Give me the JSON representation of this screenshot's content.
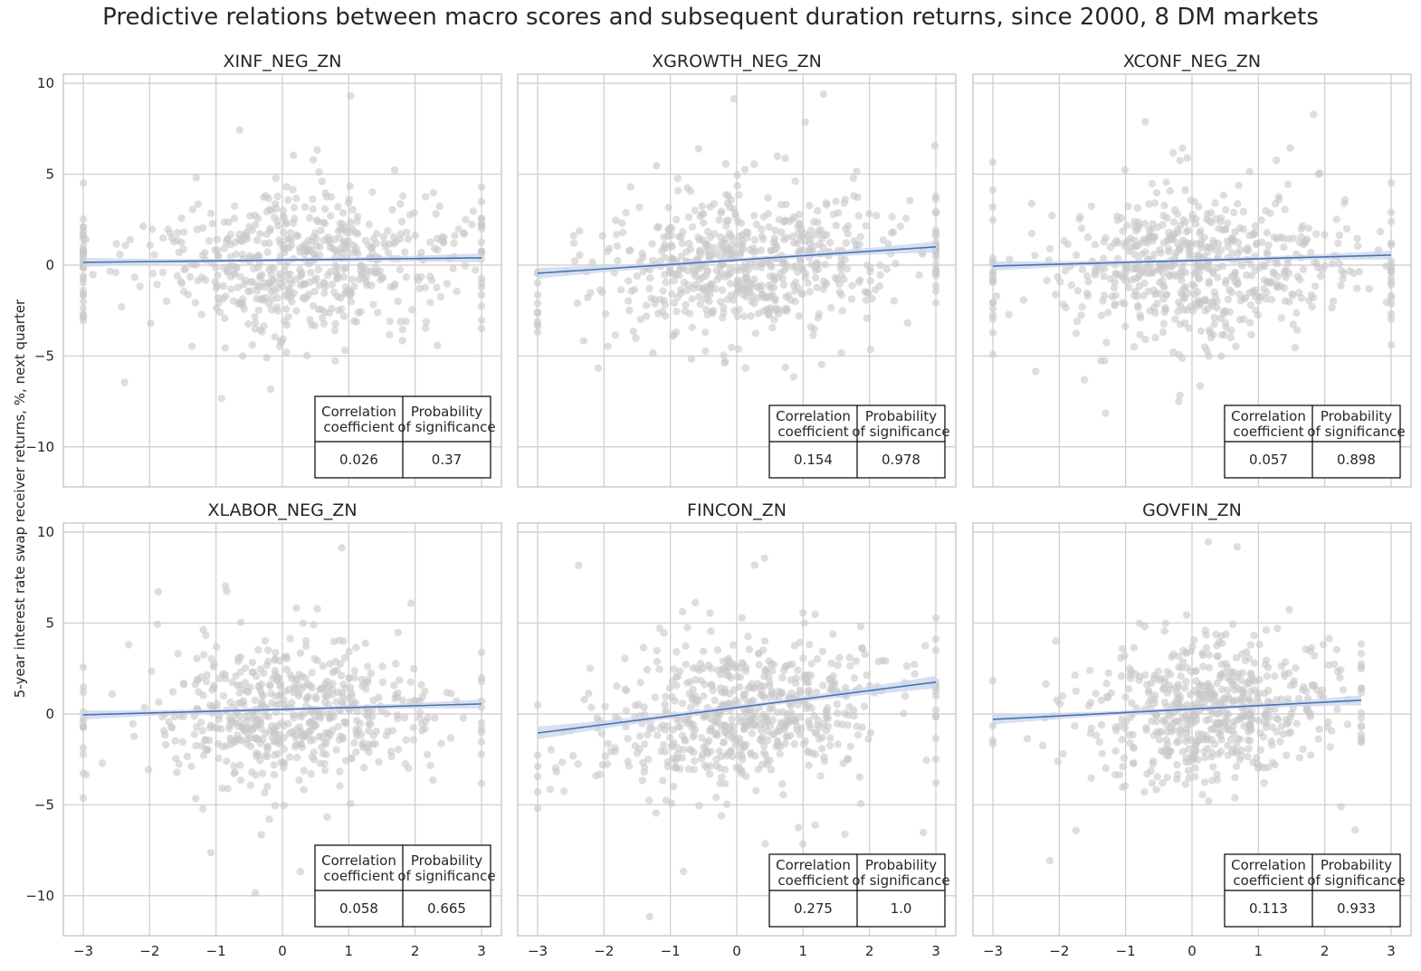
{
  "figure": {
    "title": "Predictive relations between macro scores and subsequent duration returns, since 2000, 8 DM markets",
    "ylabel": "5-year interest rate swap receiver returns, %, next quarter"
  },
  "colors": {
    "scatter": "#c8c8c8",
    "line": "#4c72b0",
    "band": "#c9d5ec",
    "grid": "#cfcfcf",
    "frame": "#cccccc",
    "table_border": "#000000"
  },
  "table_headers": [
    "Correlation\ncoefficient",
    "Probability\nof significance"
  ],
  "chart_data": [
    {
      "type": "scatter",
      "title": "XINF_NEG_ZN",
      "xlim": [
        -3.3,
        3.3
      ],
      "ylim": [
        -12.2,
        10.5
      ],
      "xticks": [
        -3,
        -2,
        -1,
        0,
        1,
        2,
        3
      ],
      "yticks": [
        -10,
        -5,
        0,
        5,
        10
      ],
      "x_tick_labels_shown": false,
      "y_tick_labels_shown": true,
      "regression": {
        "x": [
          -3,
          3
        ],
        "y": [
          0.15,
          0.4
        ],
        "ci": 0.25
      },
      "cloud": {
        "x_mean": 0.3,
        "x_sd": 1.15,
        "y_sd": 1.8,
        "slope": 0.04,
        "n": 620,
        "edge_weight": 0.09
      },
      "correlation_coefficient": "0.026",
      "probability_of_significance": "0.37"
    },
    {
      "type": "scatter",
      "title": "XGROWTH_NEG_ZN",
      "xlim": [
        -3.3,
        3.3
      ],
      "ylim": [
        -12.2,
        10.5
      ],
      "xticks": [
        -3,
        -2,
        -1,
        0,
        1,
        2,
        3
      ],
      "yticks": [
        -10,
        -5,
        0,
        5,
        10
      ],
      "x_tick_labels_shown": false,
      "y_tick_labels_shown": false,
      "regression": {
        "x": [
          -3,
          3
        ],
        "y": [
          -0.45,
          1.0
        ],
        "ci": 0.3
      },
      "cloud": {
        "x_mean": 0.1,
        "x_sd": 1.1,
        "y_sd": 1.9,
        "slope": 0.24,
        "n": 640,
        "edge_weight": 0.05
      },
      "correlation_coefficient": "0.154",
      "probability_of_significance": "0.978"
    },
    {
      "type": "scatter",
      "title": "XCONF_NEG_ZN",
      "xlim": [
        -3.3,
        3.3
      ],
      "ylim": [
        -12.2,
        10.5
      ],
      "xticks": [
        -3,
        -2,
        -1,
        0,
        1,
        2,
        3
      ],
      "yticks": [
        -10,
        -5,
        0,
        5,
        10
      ],
      "x_tick_labels_shown": false,
      "y_tick_labels_shown": false,
      "regression": {
        "x": [
          -3,
          3
        ],
        "y": [
          -0.05,
          0.55
        ],
        "ci": 0.25
      },
      "cloud": {
        "x_mean": 0.2,
        "x_sd": 1.15,
        "y_sd": 1.9,
        "slope": 0.1,
        "n": 640,
        "edge_weight": 0.06
      },
      "correlation_coefficient": "0.057",
      "probability_of_significance": "0.898"
    },
    {
      "type": "scatter",
      "title": "XLABOR_NEG_ZN",
      "xlim": [
        -3.3,
        3.3
      ],
      "ylim": [
        -12.2,
        10.5
      ],
      "xticks": [
        -3,
        -2,
        -1,
        0,
        1,
        2,
        3
      ],
      "yticks": [
        -10,
        -5,
        0,
        5,
        10
      ],
      "x_tick_labels_shown": true,
      "y_tick_labels_shown": true,
      "regression": {
        "x": [
          -3,
          3
        ],
        "y": [
          -0.05,
          0.55
        ],
        "ci": 0.25
      },
      "cloud": {
        "x_mean": 0.1,
        "x_sd": 1.05,
        "y_sd": 1.8,
        "slope": 0.1,
        "n": 600,
        "edge_weight": 0.04
      },
      "correlation_coefficient": "0.058",
      "probability_of_significance": "0.665"
    },
    {
      "type": "scatter",
      "title": "FINCON_ZN",
      "xlim": [
        -3.3,
        3.3
      ],
      "ylim": [
        -12.2,
        10.5
      ],
      "xticks": [
        -3,
        -2,
        -1,
        0,
        1,
        2,
        3
      ],
      "yticks": [
        -10,
        -5,
        0,
        5,
        10
      ],
      "x_tick_labels_shown": true,
      "y_tick_labels_shown": false,
      "regression": {
        "x": [
          -3,
          3
        ],
        "y": [
          -1.05,
          1.75
        ],
        "ci": 0.35
      },
      "cloud": {
        "x_mean": 0.1,
        "x_sd": 1.1,
        "y_sd": 1.9,
        "slope": 0.47,
        "n": 640,
        "edge_weight": 0.02
      },
      "correlation_coefficient": "0.275",
      "probability_of_significance": "1.0"
    },
    {
      "type": "scatter",
      "title": "GOVFIN_ZN",
      "xlim": [
        -3.3,
        3.3
      ],
      "ylim": [
        -12.2,
        10.5
      ],
      "xticks": [
        -3,
        -2,
        -1,
        0,
        1,
        2,
        3
      ],
      "yticks": [
        -10,
        -5,
        0,
        5,
        10
      ],
      "x_tick_labels_shown": true,
      "y_tick_labels_shown": false,
      "regression": {
        "x": [
          -3,
          2.55
        ],
        "y": [
          -0.3,
          0.75
        ],
        "ci": 0.28
      },
      "cloud": {
        "x_mean": 0.3,
        "x_sd": 0.95,
        "y_sd": 1.9,
        "slope": 0.19,
        "n": 600,
        "x_max": 2.55,
        "edge_weight": 0.02
      },
      "correlation_coefficient": "0.113",
      "probability_of_significance": "0.933"
    }
  ]
}
